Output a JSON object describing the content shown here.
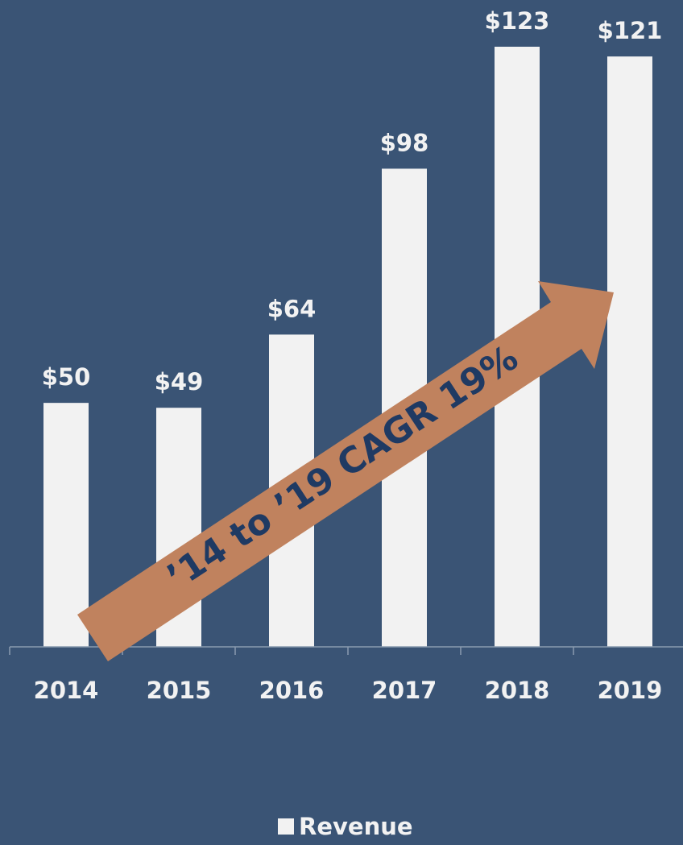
{
  "chart_data": {
    "type": "bar",
    "categories": [
      "2014",
      "2015",
      "2016",
      "2017",
      "2018",
      "2019"
    ],
    "series": [
      {
        "name": "Revenue",
        "values": [
          50,
          49,
          64,
          98,
          123,
          121
        ]
      }
    ],
    "value_labels": [
      "$50",
      "$49",
      "$64",
      "$98",
      "$123",
      "$121"
    ],
    "ylim": [
      0,
      125
    ],
    "grid": false,
    "legend_position": "bottom",
    "annotation": "’14 to ’19 CAGR 19%"
  },
  "colors": {
    "background": "#3a5475",
    "bar": "#f2f2f2",
    "axis": "#8a9bb0",
    "arrow": "#c0825e",
    "arrow_text": "#1f3a63"
  }
}
